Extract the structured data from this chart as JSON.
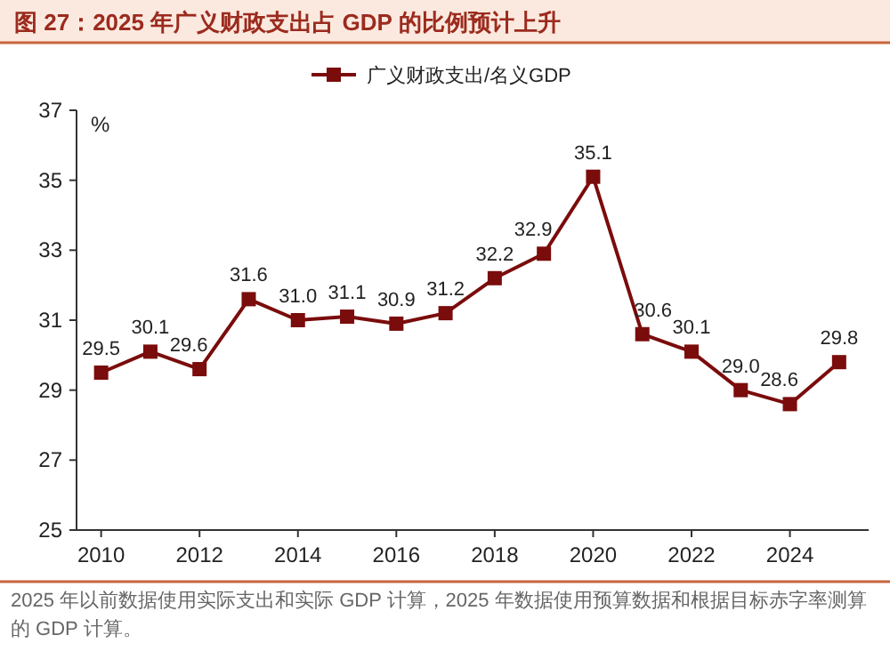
{
  "chart_data": {
    "type": "line",
    "title": "图 27：2025 年广义财政支出占 GDP 的比例预计上升",
    "ylabel": "%",
    "x": [
      2010,
      2011,
      2012,
      2013,
      2014,
      2015,
      2016,
      2017,
      2018,
      2019,
      2020,
      2021,
      2022,
      2023,
      2024,
      2025
    ],
    "series": [
      {
        "name": "广义财政支出/名义GDP",
        "color": "#7b0c0c",
        "values": [
          29.5,
          30.1,
          29.6,
          31.6,
          31.0,
          31.1,
          30.9,
          31.2,
          32.2,
          32.9,
          35.1,
          30.6,
          30.1,
          29.0,
          28.6,
          29.8
        ],
        "value_labels": [
          "29.5",
          "30.1",
          "29.6",
          "31.6",
          "31.0",
          "31.1",
          "30.9",
          "31.2",
          "32.2",
          "32.9",
          "35.1",
          "30.6",
          "30.1",
          "29.0",
          "28.6",
          "29.8"
        ]
      }
    ],
    "xlim": [
      2009.5,
      2025.6
    ],
    "xticks": [
      2010,
      2012,
      2014,
      2016,
      2018,
      2020,
      2022,
      2024
    ],
    "ylim": [
      25,
      37
    ],
    "yticks": [
      25,
      27,
      29,
      31,
      33,
      35,
      37
    ],
    "marker": "square",
    "line_style": "solid",
    "legend": "top",
    "grid": false,
    "annotations": [
      "2025 年以前数据使用实际支出和实际 GDP 计算，2025 年数据使用预算数据和根据目标赤字率测算的 GDP 计算。"
    ]
  }
}
